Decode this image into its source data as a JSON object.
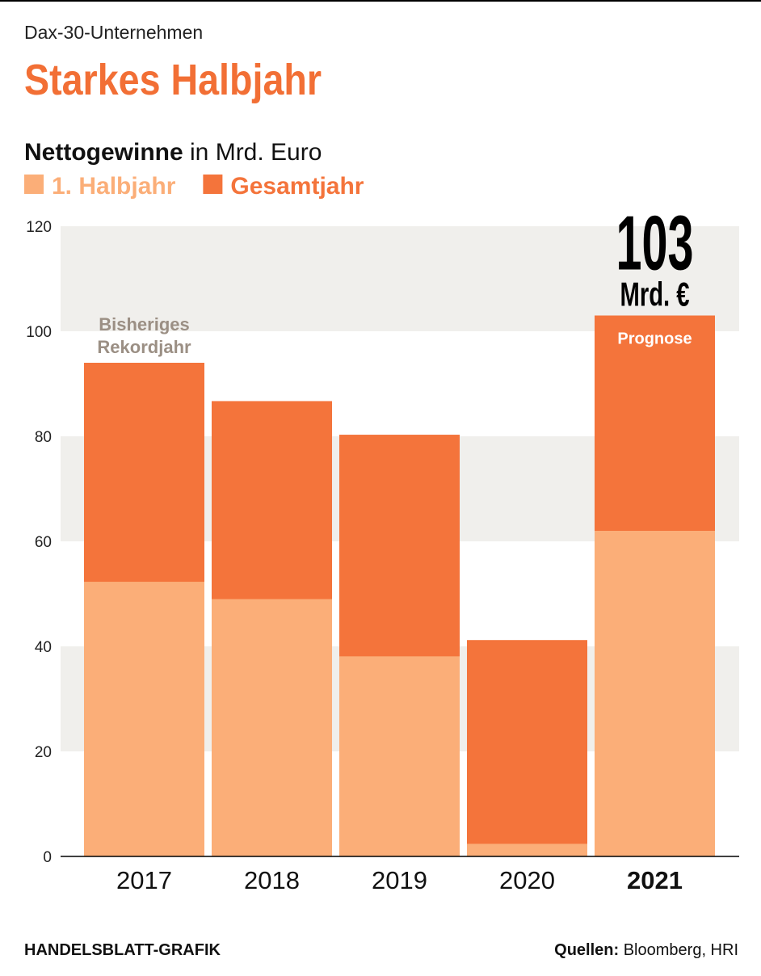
{
  "chart_data": {
    "type": "overlap-bar",
    "kicker": "Dax-30-Unternehmen",
    "title": "Starkes Halbjahr",
    "y_label": "Nettogewinne",
    "y_unit": "in Mrd. Euro",
    "categories": [
      "2017",
      "2018",
      "2019",
      "2020",
      "2021"
    ],
    "highlight_category": "2021",
    "series": [
      {
        "name": "1. Halbjahr",
        "color": "#fbae78",
        "values": [
          52.3,
          49,
          38.1,
          2.4,
          62
        ]
      },
      {
        "name": "Gesamtjahr",
        "color": "#f4743b",
        "values": [
          94,
          86.7,
          80.3,
          41.2,
          103
        ]
      }
    ],
    "ylim": [
      0,
      120
    ],
    "yticks": [
      0,
      20,
      40,
      60,
      80,
      100,
      120
    ],
    "grid": "bands",
    "annotations": [
      {
        "category": "2017",
        "lines": [
          "Bisheriges",
          "Rekordjahr"
        ]
      },
      {
        "category": "2021",
        "lines": [
          "Prognose"
        ]
      }
    ],
    "highlight_unit": "Mrd. €",
    "footer": {
      "credit": "HANDELSBLATT-GRAFIK",
      "source_label": "Quellen:",
      "source": "Bloomberg, HRI"
    }
  }
}
